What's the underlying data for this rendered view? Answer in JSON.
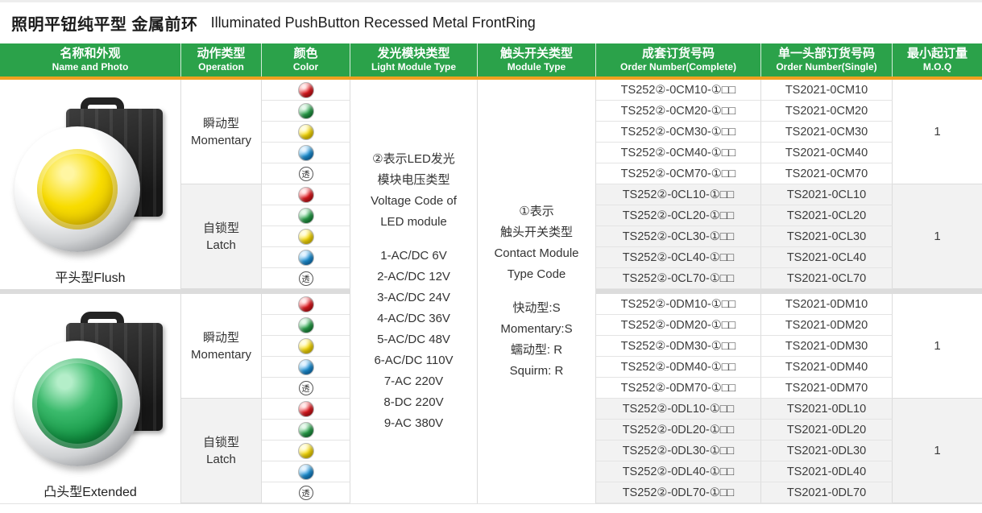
{
  "title": {
    "cn": "照明平钮纯平型 金属前环",
    "en": "Illuminated PushButton Recessed Metal FrontRing"
  },
  "header": {
    "columns": [
      {
        "cn": "名称和外观",
        "en": "Name and Photo"
      },
      {
        "cn": "动作类型",
        "en": "Operation"
      },
      {
        "cn": "颜色",
        "en": "Color"
      },
      {
        "cn": "发光模块类型",
        "en": "Light Module Type"
      },
      {
        "cn": "触头开关类型",
        "en": "Module Type"
      },
      {
        "cn": "成套订货号码",
        "en": "Order Number(Complete)"
      },
      {
        "cn": "单一头部订货号码",
        "en": "Order Number(Single)"
      },
      {
        "cn": "最小起订量",
        "en": "M.O.Q"
      }
    ]
  },
  "colors": {
    "header_green": "#2ba24a",
    "accent_orange": "#f0a11f",
    "swatch_red": "#e8191f",
    "swatch_green": "#29a54b",
    "swatch_yellow": "#ffe10a",
    "swatch_blue": "#1e96dc",
    "button_yellow": "#f8dc00",
    "button_green": "#169a48",
    "alt_block_bg": "#f2f2f2",
    "separator": "#dcdcdc"
  },
  "legend": {
    "light_module": {
      "lines": [
        "②表示LED发光",
        "模块电压类型",
        "Voltage Code of",
        "LED module",
        "",
        "1-AC/DC 6V",
        "2-AC/DC 12V",
        "3-AC/DC 24V",
        "4-AC/DC 36V",
        "5-AC/DC 48V",
        "6-AC/DC 110V",
        "7-AC 220V",
        "8-DC 220V",
        "9-AC 380V"
      ]
    },
    "module_type": {
      "lines": [
        "①表示",
        "触头开关类型",
        "Contact Module",
        "Type Code",
        "",
        "快动型:S",
        "Momentary:S",
        "蠕动型: R",
        "Squirm: R"
      ]
    }
  },
  "clear_swatch_label": "透",
  "products": [
    {
      "name": "平头型Flush",
      "face": "yellow",
      "groups": [
        {
          "operation_cn": "瞬动型",
          "operation_en": "Momentary",
          "moq": "1",
          "shaded": false,
          "rows": [
            {
              "color": "red",
              "complete": "TS252②-0CM10-①□□",
              "single": "TS2021-0CM10"
            },
            {
              "color": "green",
              "complete": "TS252②-0CM20-①□□",
              "single": "TS2021-0CM20"
            },
            {
              "color": "yellow",
              "complete": "TS252②-0CM30-①□□",
              "single": "TS2021-0CM30"
            },
            {
              "color": "blue",
              "complete": "TS252②-0CM40-①□□",
              "single": "TS2021-0CM40"
            },
            {
              "color": "clear",
              "complete": "TS252②-0CM70-①□□",
              "single": "TS2021-0CM70"
            }
          ]
        },
        {
          "operation_cn": "自锁型",
          "operation_en": "Latch",
          "moq": "1",
          "shaded": true,
          "rows": [
            {
              "color": "red",
              "complete": "TS252②-0CL10-①□□",
              "single": "TS2021-0CL10"
            },
            {
              "color": "green",
              "complete": "TS252②-0CL20-①□□",
              "single": "TS2021-0CL20"
            },
            {
              "color": "yellow",
              "complete": "TS252②-0CL30-①□□",
              "single": "TS2021-0CL30"
            },
            {
              "color": "blue",
              "complete": "TS252②-0CL40-①□□",
              "single": "TS2021-0CL40"
            },
            {
              "color": "clear",
              "complete": "TS252②-0CL70-①□□",
              "single": "TS2021-0CL70"
            }
          ]
        }
      ]
    },
    {
      "name": "凸头型Extended",
      "face": "green",
      "groups": [
        {
          "operation_cn": "瞬动型",
          "operation_en": "Momentary",
          "moq": "1",
          "shaded": false,
          "rows": [
            {
              "color": "red",
              "complete": "TS252②-0DM10-①□□",
              "single": "TS2021-0DM10"
            },
            {
              "color": "green",
              "complete": "TS252②-0DM20-①□□",
              "single": "TS2021-0DM20"
            },
            {
              "color": "yellow",
              "complete": "TS252②-0DM30-①□□",
              "single": "TS2021-0DM30"
            },
            {
              "color": "blue",
              "complete": "TS252②-0DM40-①□□",
              "single": "TS2021-0DM40"
            },
            {
              "color": "clear",
              "complete": "TS252②-0DM70-①□□",
              "single": "TS2021-0DM70"
            }
          ]
        },
        {
          "operation_cn": "自锁型",
          "operation_en": "Latch",
          "moq": "1",
          "shaded": true,
          "rows": [
            {
              "color": "red",
              "complete": "TS252②-0DL10-①□□",
              "single": "TS2021-0DL10"
            },
            {
              "color": "green",
              "complete": "TS252②-0DL20-①□□",
              "single": "TS2021-0DL20"
            },
            {
              "color": "yellow",
              "complete": "TS252②-0DL30-①□□",
              "single": "TS2021-0DL30"
            },
            {
              "color": "blue",
              "complete": "TS252②-0DL40-①□□",
              "single": "TS2021-0DL40"
            },
            {
              "color": "clear",
              "complete": "TS252②-0DL70-①□□",
              "single": "TS2021-0DL70"
            }
          ]
        }
      ]
    }
  ]
}
